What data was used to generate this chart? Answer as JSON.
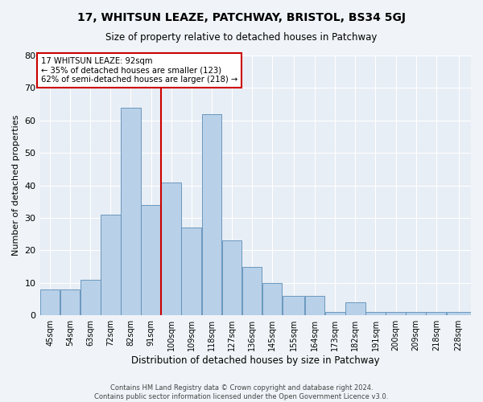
{
  "title": "17, WHITSUN LEAZE, PATCHWAY, BRISTOL, BS34 5GJ",
  "subtitle": "Size of property relative to detached houses in Patchway",
  "xlabel": "Distribution of detached houses by size in Patchway",
  "ylabel": "Number of detached properties",
  "bar_color": "#b8d0e8",
  "bar_edge_color": "#5b8db8",
  "background_color": "#e8eef5",
  "grid_color": "#ffffff",
  "categories": [
    "45sqm",
    "54sqm",
    "63sqm",
    "72sqm",
    "82sqm",
    "91sqm",
    "100sqm",
    "109sqm",
    "118sqm",
    "127sqm",
    "136sqm",
    "145sqm",
    "155sqm",
    "164sqm",
    "173sqm",
    "182sqm",
    "191sqm",
    "200sqm",
    "209sqm",
    "218sqm",
    "228sqm"
  ],
  "values": [
    8,
    8,
    11,
    31,
    64,
    34,
    41,
    27,
    62,
    23,
    15,
    10,
    6,
    6,
    1,
    4,
    1,
    1,
    1,
    1,
    1
  ],
  "bin_edges": [
    40.5,
    49.5,
    58.5,
    67.5,
    76.5,
    85.5,
    94.5,
    103.5,
    112.5,
    121.5,
    130.5,
    139.5,
    148.5,
    158.5,
    167.5,
    176.5,
    185.5,
    194.5,
    203.5,
    212.5,
    221.5,
    232.5
  ],
  "annotation_text": "17 WHITSUN LEAZE: 92sqm\n← 35% of detached houses are smaller (123)\n62% of semi-detached houses are larger (218) →",
  "annotation_box_color": "#ffffff",
  "annotation_box_edge": "#cc0000",
  "vline_color": "#cc0000",
  "footer_line1": "Contains HM Land Registry data © Crown copyright and database right 2024.",
  "footer_line2": "Contains public sector information licensed under the Open Government Licence v3.0.",
  "ylim": [
    0,
    80
  ],
  "yticks": [
    0,
    10,
    20,
    30,
    40,
    50,
    60,
    70,
    80
  ]
}
